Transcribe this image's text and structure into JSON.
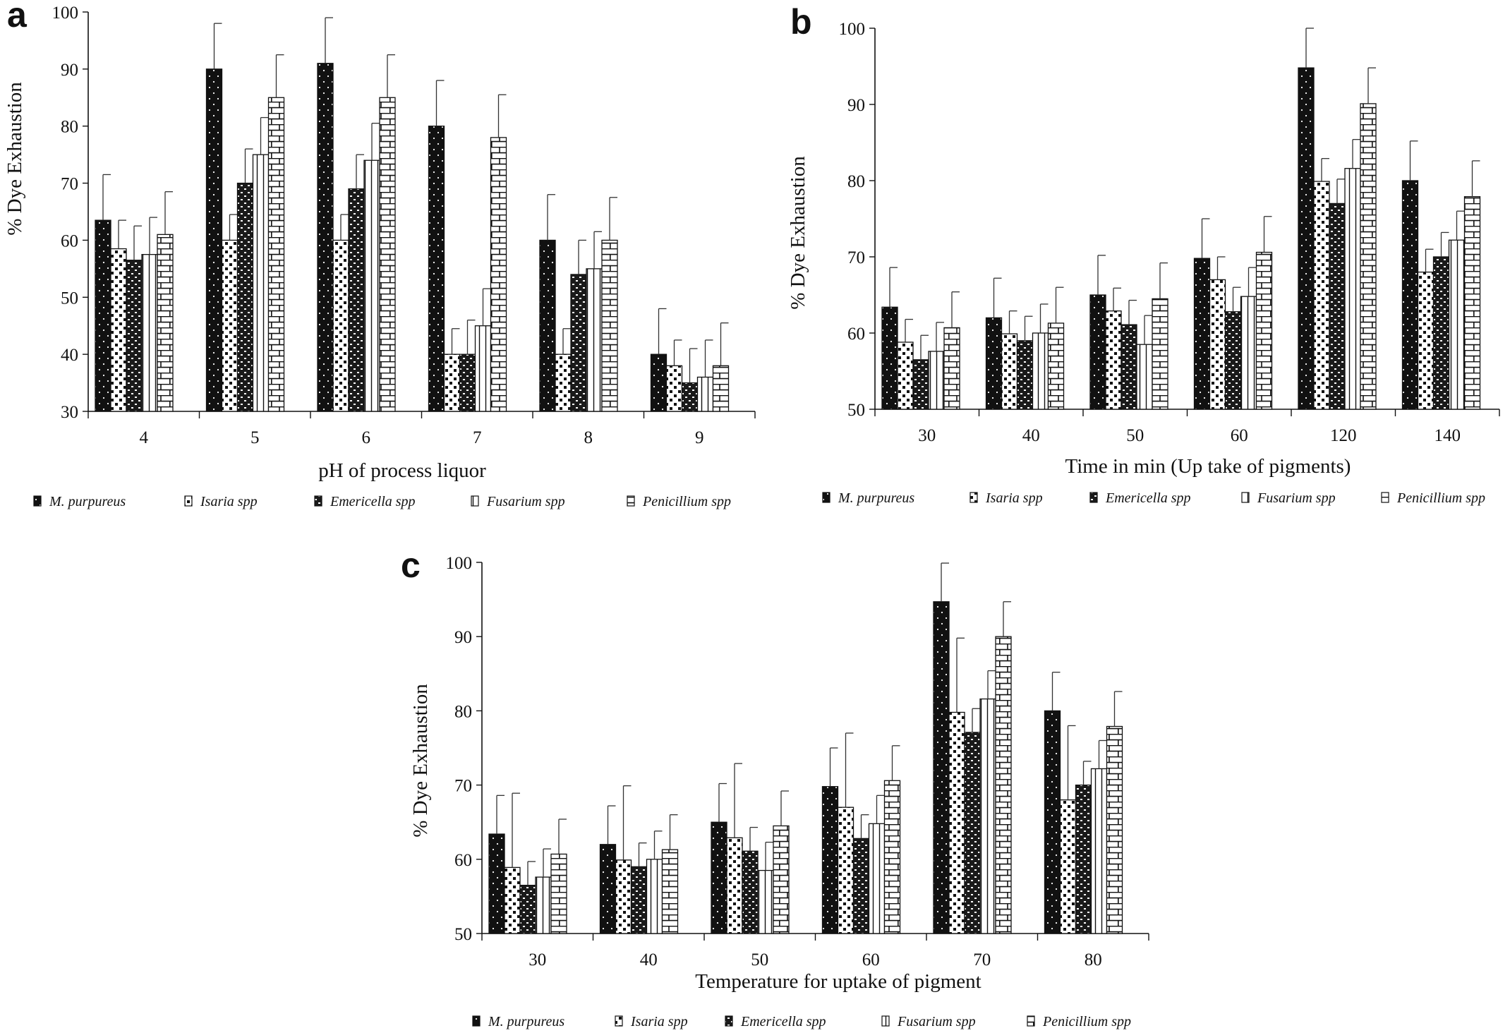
{
  "series_names": [
    "M. purpureus",
    "Isaria spp",
    "Emericella spp",
    "Fusarium spp",
    "Penicillium spp"
  ],
  "chart_data": [
    {
      "panel": "a",
      "type": "bar",
      "xlabel": "pH of process liquor",
      "ylabel": "% Dye Exhaustion",
      "ylim": [
        30,
        100
      ],
      "yticks": [
        30,
        40,
        50,
        60,
        70,
        80,
        90,
        100
      ],
      "categories": [
        "4",
        "5",
        "6",
        "7",
        "8",
        "9"
      ],
      "series": [
        {
          "name": "M. purpureus",
          "values": [
            63.5,
            90,
            91,
            80,
            60,
            40
          ],
          "errors": [
            8,
            8,
            8,
            8,
            8,
            8
          ]
        },
        {
          "name": "Isaria spp",
          "values": [
            58.5,
            60,
            60,
            40,
            40,
            38
          ],
          "errors": [
            5,
            4.5,
            4.5,
            4.5,
            4.5,
            4.5
          ]
        },
        {
          "name": "Emericella spp",
          "values": [
            56.5,
            70,
            69,
            40,
            54,
            35
          ],
          "errors": [
            6,
            6,
            6,
            6,
            6,
            6
          ]
        },
        {
          "name": "Fusarium spp",
          "values": [
            57.5,
            75,
            74,
            45,
            55,
            36
          ],
          "errors": [
            6.5,
            6.5,
            6.5,
            6.5,
            6.5,
            6.5
          ]
        },
        {
          "name": "Penicillium spp",
          "values": [
            61,
            85,
            85,
            78,
            60,
            38
          ],
          "errors": [
            7.5,
            7.5,
            7.5,
            7.5,
            7.5,
            7.5
          ]
        }
      ]
    },
    {
      "panel": "b",
      "type": "bar",
      "xlabel": "Time in min (Up take of pigments)",
      "ylabel": "% Dye Exhaustion",
      "ylim": [
        50,
        100
      ],
      "yticks": [
        50,
        60,
        70,
        80,
        90,
        100
      ],
      "categories": [
        "30",
        "40",
        "50",
        "60",
        "120",
        "140"
      ],
      "series": [
        {
          "name": "M. purpureus",
          "values": [
            63.4,
            62,
            65,
            69.8,
            94.8,
            80
          ],
          "errors": [
            5.2,
            5.2,
            5.2,
            5.2,
            5.2,
            5.2
          ]
        },
        {
          "name": "Isaria spp",
          "values": [
            58.8,
            59.9,
            62.9,
            67,
            79.9,
            68
          ],
          "errors": [
            3,
            3,
            3,
            3,
            3,
            3
          ]
        },
        {
          "name": "Emericella spp",
          "values": [
            56.5,
            59,
            61.1,
            62.8,
            77,
            70
          ],
          "errors": [
            3.2,
            3.2,
            3.2,
            3.2,
            3.2,
            3.2
          ]
        },
        {
          "name": "Fusarium spp",
          "values": [
            57.6,
            60,
            58.5,
            64.8,
            81.6,
            72.2
          ],
          "errors": [
            3.8,
            3.8,
            3.8,
            3.8,
            3.8,
            3.8
          ]
        },
        {
          "name": "Penicillium spp",
          "values": [
            60.7,
            61.3,
            64.5,
            70.6,
            90.1,
            77.9
          ],
          "errors": [
            4.7,
            4.7,
            4.7,
            4.7,
            4.7,
            4.7
          ]
        }
      ]
    },
    {
      "panel": "c",
      "type": "bar",
      "xlabel": "Temperature for uptake of pigment",
      "ylabel": "% Dye Exhaustion",
      "ylim": [
        50,
        100
      ],
      "yticks": [
        50,
        60,
        70,
        80,
        90,
        100
      ],
      "categories": [
        "30",
        "40",
        "50",
        "60",
        "70",
        "80"
      ],
      "series": [
        {
          "name": "M. purpureus",
          "values": [
            63.4,
            62,
            65,
            69.8,
            94.7,
            80
          ],
          "errors": [
            5.2,
            5.2,
            5.2,
            5.2,
            5.2,
            5.2
          ]
        },
        {
          "name": "Isaria spp",
          "values": [
            58.9,
            59.9,
            62.9,
            67,
            79.8,
            68
          ],
          "errors": [
            10,
            10,
            10,
            10,
            10,
            10
          ]
        },
        {
          "name": "Emericella spp",
          "values": [
            56.5,
            59,
            61.1,
            62.8,
            77.1,
            70
          ],
          "errors": [
            3.2,
            3.2,
            3.2,
            3.2,
            3.2,
            3.2
          ]
        },
        {
          "name": "Fusarium spp",
          "values": [
            57.6,
            60,
            58.5,
            64.8,
            81.6,
            72.2
          ],
          "errors": [
            3.8,
            3.8,
            3.8,
            3.8,
            3.8,
            3.8
          ]
        },
        {
          "name": "Penicillium spp",
          "values": [
            60.7,
            61.3,
            64.5,
            70.6,
            90,
            77.9
          ],
          "errors": [
            4.7,
            4.7,
            4.7,
            4.7,
            4.7,
            4.7
          ]
        }
      ]
    }
  ]
}
